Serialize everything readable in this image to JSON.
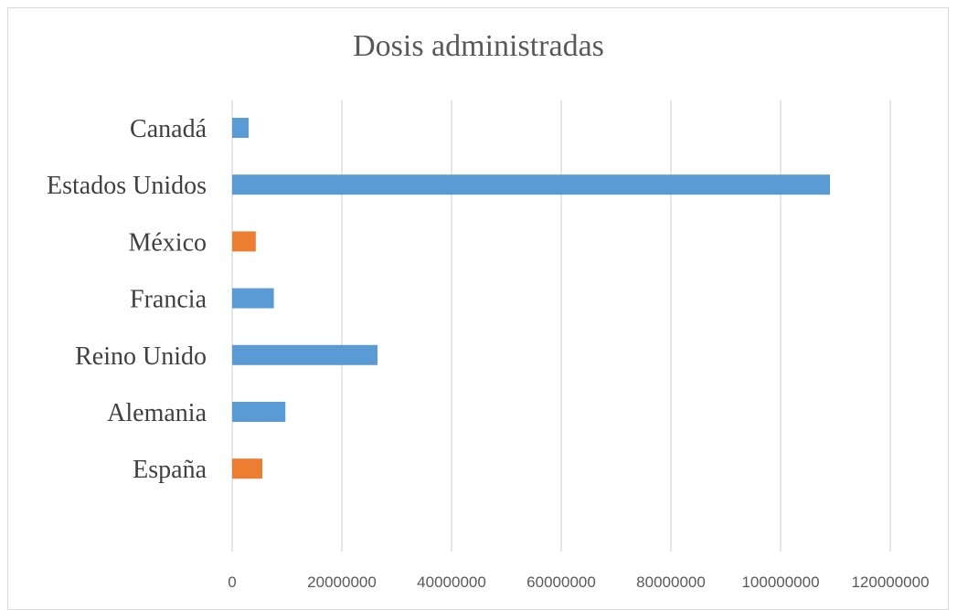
{
  "chart_data": {
    "type": "bar",
    "orientation": "horizontal",
    "title": "Dosis administradas",
    "xlabel": "",
    "ylabel": "",
    "categories": [
      "Canadá",
      "Estados Unidos",
      "México",
      "Francia",
      "Reino Unido",
      "Alemania",
      "España"
    ],
    "values": [
      3000000,
      109000000,
      4300000,
      7600000,
      26500000,
      9700000,
      5500000
    ],
    "bar_colors": [
      "#5b9bd5",
      "#5b9bd5",
      "#ed7d31",
      "#5b9bd5",
      "#5b9bd5",
      "#5b9bd5",
      "#ed7d31"
    ],
    "xlim": [
      0,
      120000000
    ],
    "xticks": [
      0,
      20000000,
      40000000,
      60000000,
      80000000,
      100000000,
      120000000
    ],
    "xtick_labels": [
      "0",
      "20000000",
      "40000000",
      "60000000",
      "80000000",
      "100000000",
      "120000000"
    ],
    "grid": "vertical",
    "legend": "none",
    "colors": {
      "gridline": "#d9d9d9"
    }
  }
}
